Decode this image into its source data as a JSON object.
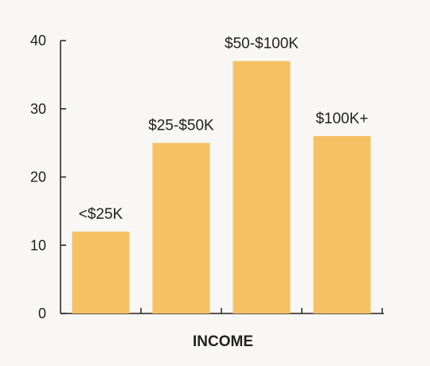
{
  "chart_data": {
    "type": "bar",
    "categories": [
      "<$25K",
      "$25-$50K",
      "$50-$100K",
      "$100K+"
    ],
    "values": [
      12,
      25,
      37,
      26
    ],
    "title": "",
    "xlabel": "INCOME",
    "ylabel": "",
    "ylim": [
      0,
      40
    ],
    "yticks": [
      0,
      10,
      20,
      30,
      40
    ],
    "bar_color": "#f5c163",
    "axis_color": "#222222",
    "background_color": "#f8f7f5",
    "grid": false,
    "legend": "none"
  }
}
